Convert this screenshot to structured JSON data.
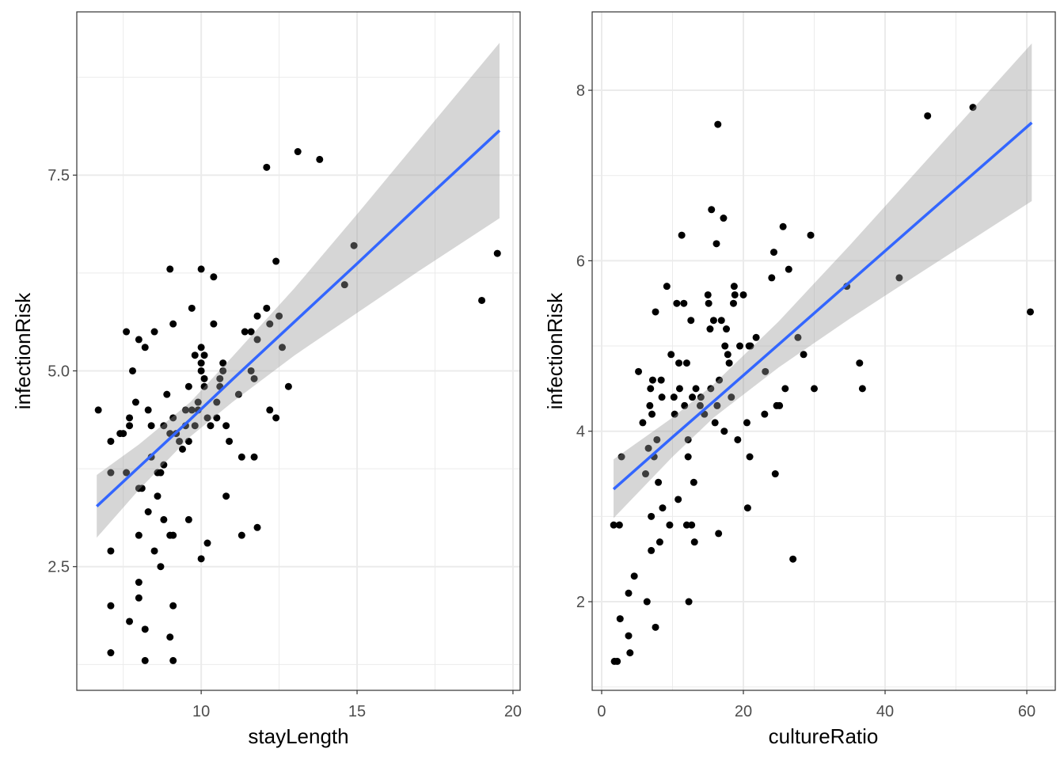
{
  "colors": {
    "point": "#000000",
    "line": "#3366FF",
    "band": "#999999",
    "grid": "#EBEBEB",
    "border": "#333333"
  },
  "chart_data": [
    {
      "type": "scatter",
      "xlabel": "stayLength",
      "ylabel": "infectionRisk",
      "xlim": [
        6.01,
        20.23
      ],
      "ylim": [
        0.92,
        9.585
      ],
      "xticks": [
        10,
        15,
        20
      ],
      "xtick_labels": [
        "10",
        "15",
        "20"
      ],
      "yticks": [
        2.5,
        5.0,
        7.5
      ],
      "ytick_labels": [
        "2.5",
        "5.0",
        "7.5"
      ],
      "grid": true,
      "points": [
        [
          6.7,
          4.5
        ],
        [
          7.1,
          4.1
        ],
        [
          7.1,
          3.7
        ],
        [
          7.1,
          2.7
        ],
        [
          7.1,
          2.0
        ],
        [
          7.1,
          1.4
        ],
        [
          7.4,
          4.2
        ],
        [
          7.5,
          4.2
        ],
        [
          7.6,
          3.7
        ],
        [
          7.6,
          5.5
        ],
        [
          7.7,
          4.4
        ],
        [
          7.7,
          4.3
        ],
        [
          7.7,
          1.8
        ],
        [
          7.8,
          5.0
        ],
        [
          7.9,
          4.6
        ],
        [
          8.0,
          5.4
        ],
        [
          8.0,
          3.5
        ],
        [
          8.0,
          2.9
        ],
        [
          8.0,
          2.3
        ],
        [
          8.0,
          2.1
        ],
        [
          8.1,
          3.5
        ],
        [
          8.2,
          5.3
        ],
        [
          8.2,
          1.7
        ],
        [
          8.2,
          1.3
        ],
        [
          8.3,
          3.2
        ],
        [
          8.3,
          4.5
        ],
        [
          8.4,
          3.9
        ],
        [
          8.4,
          4.3
        ],
        [
          8.5,
          5.5
        ],
        [
          8.5,
          2.7
        ],
        [
          8.6,
          3.7
        ],
        [
          8.6,
          3.4
        ],
        [
          8.7,
          3.7
        ],
        [
          8.7,
          2.5
        ],
        [
          8.8,
          4.3
        ],
        [
          8.8,
          3.1
        ],
        [
          8.8,
          3.8
        ],
        [
          8.9,
          4.7
        ],
        [
          9.0,
          6.3
        ],
        [
          9.0,
          4.2
        ],
        [
          9.0,
          2.9
        ],
        [
          9.0,
          1.6
        ],
        [
          9.1,
          5.6
        ],
        [
          9.1,
          2.9
        ],
        [
          9.1,
          2.0
        ],
        [
          9.1,
          1.3
        ],
        [
          9.1,
          4.4
        ],
        [
          9.2,
          4.2
        ],
        [
          9.3,
          4.1
        ],
        [
          9.4,
          4.0
        ],
        [
          9.5,
          4.3
        ],
        [
          9.5,
          4.5
        ],
        [
          9.6,
          3.1
        ],
        [
          9.6,
          4.8
        ],
        [
          9.6,
          4.1
        ],
        [
          9.7,
          5.8
        ],
        [
          9.7,
          4.5
        ],
        [
          9.8,
          5.2
        ],
        [
          9.8,
          4.3
        ],
        [
          9.9,
          4.6
        ],
        [
          9.9,
          4.5
        ],
        [
          10.0,
          6.3
        ],
        [
          10.0,
          5.3
        ],
        [
          10.0,
          5.1
        ],
        [
          10.0,
          5.0
        ],
        [
          10.0,
          2.6
        ],
        [
          10.1,
          5.2
        ],
        [
          10.1,
          4.9
        ],
        [
          10.1,
          4.8
        ],
        [
          10.2,
          4.4
        ],
        [
          10.2,
          2.8
        ],
        [
          10.3,
          4.3
        ],
        [
          10.4,
          5.6
        ],
        [
          10.4,
          6.2
        ],
        [
          10.5,
          4.6
        ],
        [
          10.5,
          4.4
        ],
        [
          10.6,
          4.9
        ],
        [
          10.6,
          4.8
        ],
        [
          10.7,
          5.1
        ],
        [
          10.7,
          5.0
        ],
        [
          10.8,
          4.3
        ],
        [
          10.8,
          3.4
        ],
        [
          10.9,
          4.1
        ],
        [
          11.2,
          4.7
        ],
        [
          11.3,
          3.9
        ],
        [
          11.3,
          2.9
        ],
        [
          11.4,
          5.5
        ],
        [
          11.6,
          5.5
        ],
        [
          11.6,
          5.0
        ],
        [
          11.7,
          4.9
        ],
        [
          11.7,
          3.9
        ],
        [
          11.8,
          5.7
        ],
        [
          11.8,
          5.4
        ],
        [
          11.8,
          3.0
        ],
        [
          12.1,
          7.6
        ],
        [
          12.1,
          5.8
        ],
        [
          12.2,
          5.6
        ],
        [
          12.2,
          4.5
        ],
        [
          12.4,
          6.4
        ],
        [
          12.4,
          4.4
        ],
        [
          12.5,
          5.7
        ],
        [
          12.6,
          5.3
        ],
        [
          12.8,
          4.8
        ],
        [
          13.1,
          7.8
        ],
        [
          13.8,
          7.7
        ],
        [
          14.6,
          6.1
        ],
        [
          14.9,
          6.6
        ],
        [
          19.0,
          5.9
        ],
        [
          19.5,
          6.5
        ]
      ],
      "fit": {
        "x": [
          6.65,
          8,
          9.65,
          11,
          13,
          15,
          17,
          19.57
        ],
        "y": [
          3.27,
          3.77,
          4.38,
          4.89,
          5.63,
          6.37,
          7.12,
          8.07
        ],
        "lower": [
          2.87,
          3.48,
          4.16,
          4.6,
          5.2,
          5.74,
          6.28,
          6.95
        ],
        "upper": [
          3.67,
          4.06,
          4.6,
          5.18,
          6.06,
          7.0,
          7.96,
          9.19
        ]
      }
    },
    {
      "type": "scatter",
      "xlabel": "cultureRatio",
      "ylabel": "infectionRisk",
      "xlim": [
        -1.34,
        64.02
      ],
      "ylim": [
        0.96,
        8.92
      ],
      "xticks": [
        0,
        20,
        40,
        60
      ],
      "xtick_labels": [
        "0",
        "20",
        "40",
        "60"
      ],
      "yticks": [
        2,
        4,
        6,
        8
      ],
      "ytick_labels": [
        "2",
        "4",
        "6",
        "8"
      ],
      "grid": true,
      "points": [
        [
          1.7,
          2.9
        ],
        [
          1.8,
          1.3
        ],
        [
          2.2,
          1.3
        ],
        [
          2.5,
          2.9
        ],
        [
          2.6,
          1.8
        ],
        [
          2.8,
          3.7
        ],
        [
          3.8,
          2.1
        ],
        [
          3.8,
          1.6
        ],
        [
          4.0,
          1.4
        ],
        [
          4.6,
          2.3
        ],
        [
          5.2,
          4.7
        ],
        [
          5.8,
          4.1
        ],
        [
          6.2,
          3.5
        ],
        [
          6.4,
          2.0
        ],
        [
          6.6,
          3.8
        ],
        [
          6.8,
          4.3
        ],
        [
          6.9,
          4.5
        ],
        [
          7.0,
          2.6
        ],
        [
          7.0,
          3.0
        ],
        [
          7.1,
          4.2
        ],
        [
          7.2,
          4.6
        ],
        [
          7.4,
          3.7
        ],
        [
          7.6,
          5.4
        ],
        [
          7.6,
          1.7
        ],
        [
          7.8,
          3.9
        ],
        [
          8.0,
          3.4
        ],
        [
          8.2,
          2.7
        ],
        [
          8.4,
          4.6
        ],
        [
          8.5,
          4.4
        ],
        [
          8.6,
          3.1
        ],
        [
          9.2,
          5.7
        ],
        [
          9.6,
          2.9
        ],
        [
          9.8,
          4.9
        ],
        [
          10.2,
          4.4
        ],
        [
          10.3,
          4.2
        ],
        [
          10.6,
          5.5
        ],
        [
          10.8,
          3.2
        ],
        [
          10.9,
          4.8
        ],
        [
          11.0,
          4.5
        ],
        [
          11.3,
          6.3
        ],
        [
          11.6,
          5.5
        ],
        [
          11.7,
          4.3
        ],
        [
          12.0,
          4.8
        ],
        [
          12.0,
          2.9
        ],
        [
          12.2,
          3.9
        ],
        [
          12.2,
          3.7
        ],
        [
          12.3,
          2.0
        ],
        [
          12.6,
          5.3
        ],
        [
          12.7,
          2.9
        ],
        [
          12.8,
          4.4
        ],
        [
          13.0,
          3.4
        ],
        [
          13.1,
          2.7
        ],
        [
          13.3,
          4.5
        ],
        [
          13.9,
          4.3
        ],
        [
          14.0,
          4.4
        ],
        [
          14.5,
          4.2
        ],
        [
          15.0,
          5.6
        ],
        [
          15.1,
          5.5
        ],
        [
          15.3,
          5.2
        ],
        [
          15.4,
          4.5
        ],
        [
          15.5,
          6.6
        ],
        [
          15.8,
          5.3
        ],
        [
          16.0,
          4.1
        ],
        [
          16.2,
          6.2
        ],
        [
          16.3,
          4.3
        ],
        [
          16.4,
          7.6
        ],
        [
          16.5,
          2.8
        ],
        [
          16.6,
          4.6
        ],
        [
          16.9,
          5.3
        ],
        [
          17.2,
          6.5
        ],
        [
          17.3,
          4.0
        ],
        [
          17.4,
          5.0
        ],
        [
          17.6,
          5.2
        ],
        [
          17.8,
          4.9
        ],
        [
          18.0,
          4.8
        ],
        [
          18.3,
          4.4
        ],
        [
          18.6,
          5.5
        ],
        [
          18.7,
          5.7
        ],
        [
          18.8,
          5.6
        ],
        [
          19.2,
          3.9
        ],
        [
          19.5,
          5.0
        ],
        [
          20.0,
          5.6
        ],
        [
          20.5,
          4.1
        ],
        [
          20.6,
          3.1
        ],
        [
          20.8,
          5.0
        ],
        [
          20.9,
          3.7
        ],
        [
          21.0,
          5.0
        ],
        [
          21.8,
          5.1
        ],
        [
          23.0,
          4.2
        ],
        [
          23.1,
          4.7
        ],
        [
          24.0,
          5.8
        ],
        [
          24.3,
          6.1
        ],
        [
          24.5,
          3.5
        ],
        [
          24.7,
          4.3
        ],
        [
          25.1,
          4.3
        ],
        [
          25.6,
          6.4
        ],
        [
          25.9,
          4.5
        ],
        [
          26.4,
          5.9
        ],
        [
          27.0,
          2.5
        ],
        [
          27.7,
          5.1
        ],
        [
          28.5,
          4.9
        ],
        [
          29.5,
          6.3
        ],
        [
          30.0,
          4.5
        ],
        [
          34.6,
          5.7
        ],
        [
          36.4,
          4.8
        ],
        [
          36.8,
          4.5
        ],
        [
          42.0,
          5.8
        ],
        [
          46.0,
          7.7
        ],
        [
          52.4,
          7.8
        ],
        [
          60.5,
          5.4
        ]
      ],
      "fit": {
        "x": [
          1.68,
          10,
          15.8,
          25,
          35,
          45,
          60.7
        ],
        "y": [
          3.32,
          3.93,
          4.35,
          5.02,
          5.75,
          6.48,
          7.62
        ],
        "lower": [
          2.98,
          3.7,
          4.16,
          4.75,
          5.32,
          5.86,
          6.7
        ],
        "upper": [
          3.67,
          4.16,
          4.55,
          5.29,
          6.18,
          7.1,
          8.55
        ]
      }
    }
  ]
}
